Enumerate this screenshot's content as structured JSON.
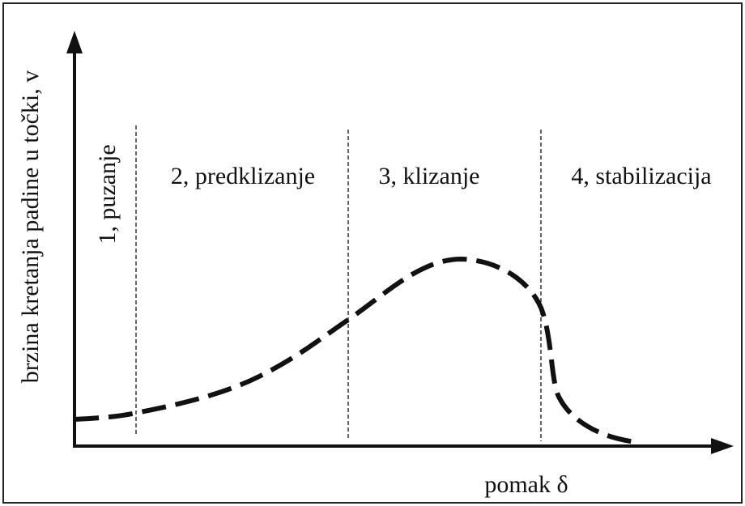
{
  "y_axis_label": "brzina kretanja padine u točki, v",
  "x_axis_label": "pomak  δ",
  "phases": [
    {
      "label": "1, puzanje"
    },
    {
      "label": "2, predklizanje"
    },
    {
      "label": "3, klizanje"
    },
    {
      "label": "4, stabilizacija"
    }
  ]
}
